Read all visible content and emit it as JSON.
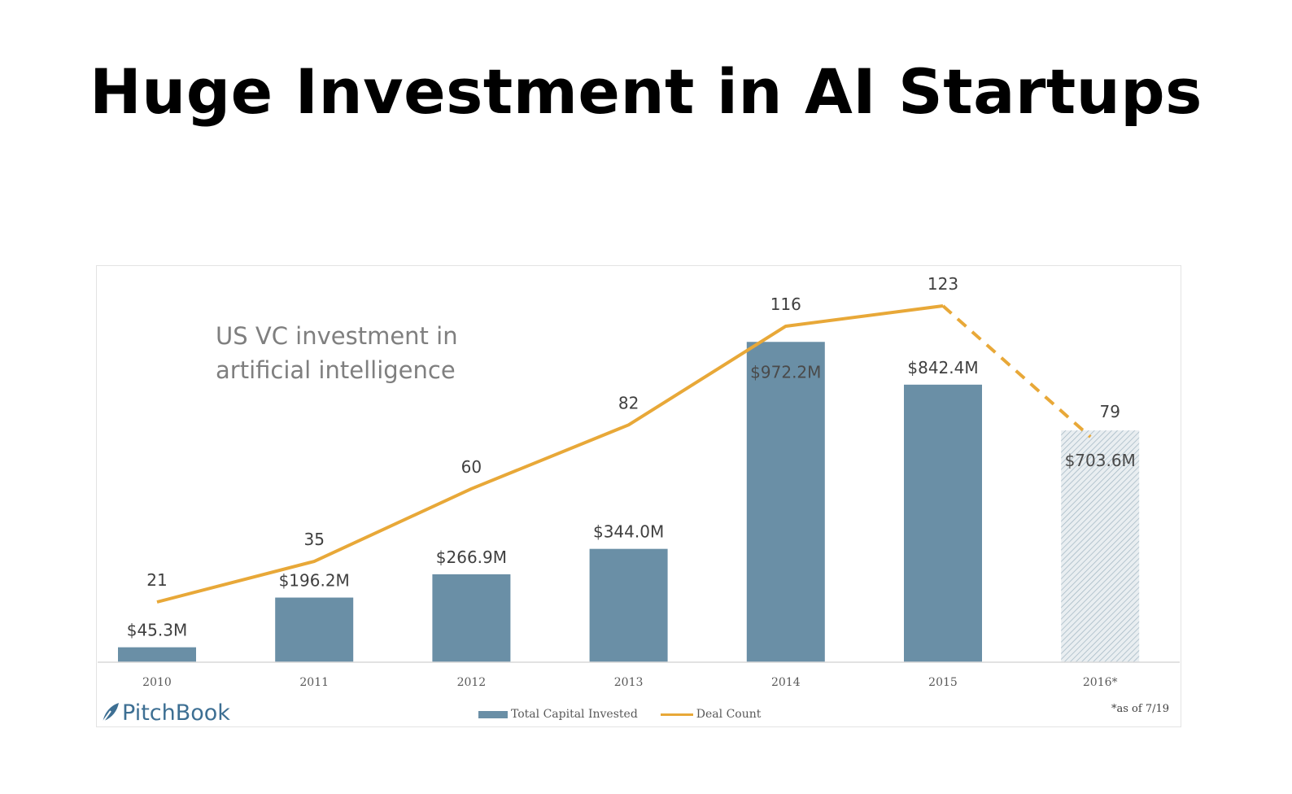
{
  "page": {
    "title": "Huge Investment in AI Startups"
  },
  "chart_data": {
    "type": "bar",
    "subtitle": "US VC investment in artificial intelligence",
    "categories": [
      "2010",
      "2011",
      "2012",
      "2013",
      "2014",
      "2015",
      "2016*"
    ],
    "series": [
      {
        "name": "Total Capital Invested",
        "kind": "bar",
        "values": [
          45.3,
          196.2,
          266.9,
          344.0,
          972.2,
          842.4,
          703.6
        ],
        "labels": [
          "$45.3M",
          "$196.2M",
          "$266.9M",
          "$344.0M",
          "$972.2M",
          "$842.4M",
          "$703.6M"
        ],
        "color": "#6a8fa6",
        "partial_last": true
      },
      {
        "name": "Deal Count",
        "kind": "line",
        "values": [
          21,
          35,
          60,
          82,
          116,
          123,
          79
        ],
        "labels": [
          "21",
          "35",
          "60",
          "82",
          "116",
          "123",
          "79"
        ],
        "color": "#e8a838",
        "dashed_last_segment": true
      }
    ],
    "ylim_bar": [
      0,
      1000
    ],
    "ylim_line": [
      0,
      148
    ],
    "grid": false,
    "legend_placement": "bottom",
    "footnote": "*as of 7/19",
    "source": "PitchBook"
  }
}
